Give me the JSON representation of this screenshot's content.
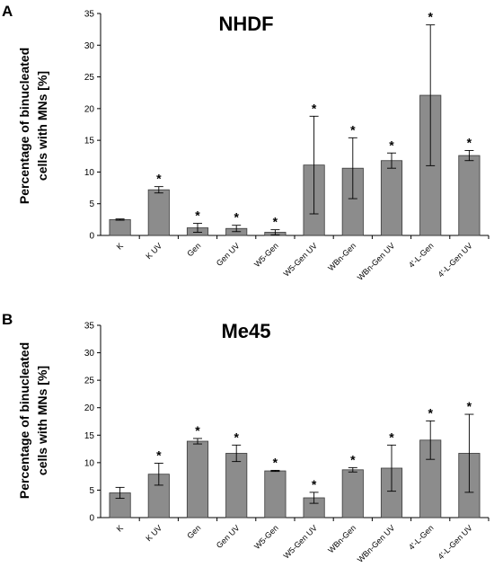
{
  "chart_data": [
    {
      "type": "bar",
      "panel": "A",
      "title": "NHDF",
      "ylabel_lines": [
        "Percentage of  binucleated",
        "cells with MNs [%]"
      ],
      "ylim": [
        0,
        35
      ],
      "yticks": [
        0,
        5,
        10,
        15,
        20,
        25,
        30,
        35
      ],
      "categories": [
        "K",
        "K UV",
        "Gen",
        "Gen UV",
        "W5-Gen",
        "W5-Gen UV",
        "WBn-Gen",
        "WBn-Gen UV",
        "4'-L-Gen",
        "4'-L-Gen UV"
      ],
      "values": [
        2.5,
        7.2,
        1.2,
        1.1,
        0.5,
        11.1,
        10.6,
        11.8,
        22.1,
        12.6
      ],
      "errors": [
        0.1,
        0.5,
        0.7,
        0.5,
        0.4,
        7.7,
        4.8,
        1.2,
        11.1,
        0.8
      ],
      "significance": [
        "",
        "*",
        "*",
        "*",
        "*",
        "*",
        "*",
        "*",
        "*",
        "*"
      ],
      "grid": false,
      "color": "#8c8c8c"
    },
    {
      "type": "bar",
      "panel": "B",
      "title": "Me45",
      "ylabel_lines": [
        "Percentage of  binucleated",
        "cells with MNs [%]"
      ],
      "ylim": [
        0,
        35
      ],
      "yticks": [
        0,
        5,
        10,
        15,
        20,
        25,
        30,
        35
      ],
      "categories": [
        "K",
        "K UV",
        "Gen",
        "Gen UV",
        "W5-Gen",
        "W5-Gen UV",
        "WBn-Gen",
        "WBn-Gen UV",
        "4'-L-Gen",
        "4'-L-Gen UV"
      ],
      "values": [
        4.5,
        7.9,
        13.9,
        11.7,
        8.5,
        3.6,
        8.7,
        9.0,
        14.1,
        11.7
      ],
      "errors": [
        1.0,
        2.0,
        0.5,
        1.5,
        0.1,
        1.0,
        0.4,
        4.2,
        3.5,
        7.1
      ],
      "significance": [
        "",
        "*",
        "*",
        "*",
        "*",
        "*",
        "*",
        "*",
        "*",
        "*"
      ],
      "grid": false,
      "color": "#8c8c8c"
    }
  ]
}
